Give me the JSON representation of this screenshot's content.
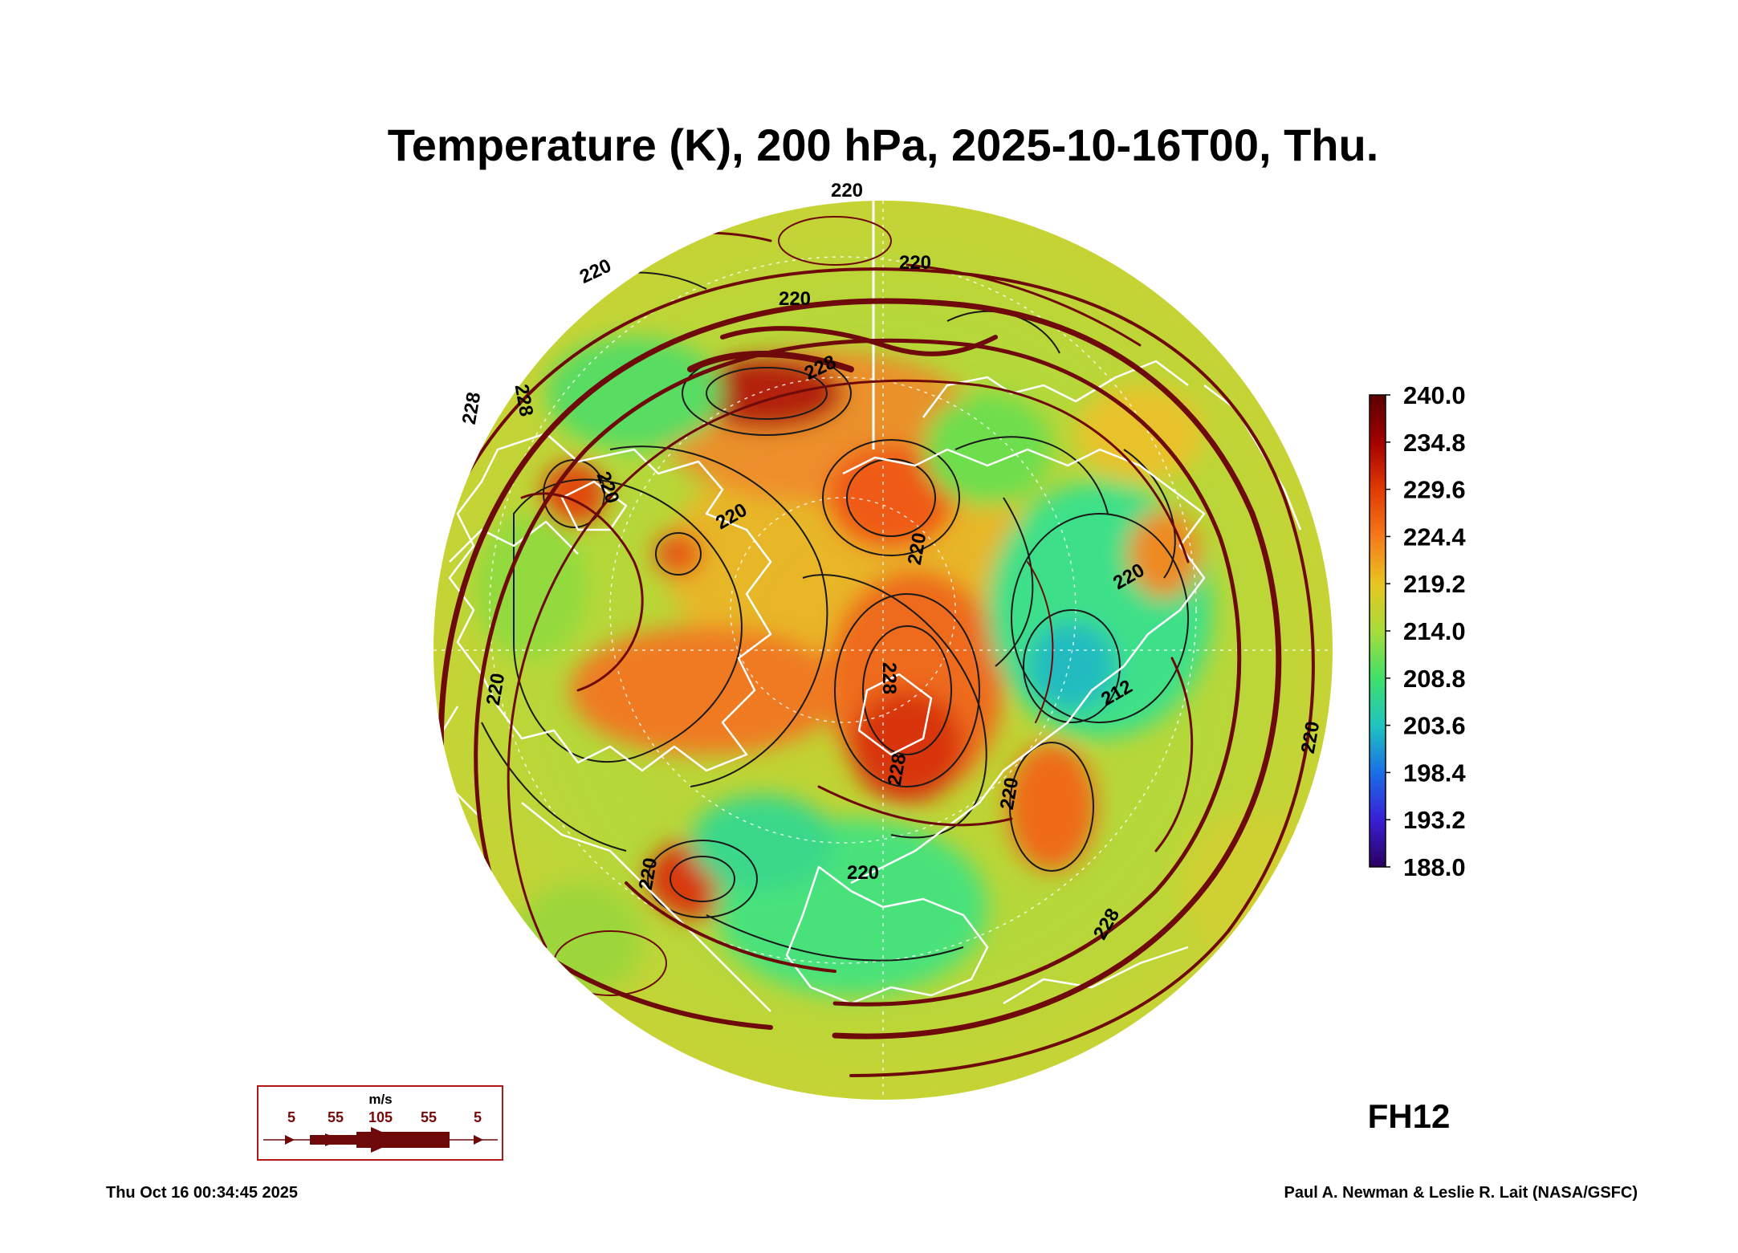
{
  "title": "Temperature (K), 200 hPa, 2025-10-16T00, Thu.",
  "colorbar": {
    "labels": [
      "240.0",
      "234.8",
      "229.6",
      "224.4",
      "219.2",
      "214.0",
      "208.8",
      "203.6",
      "198.4",
      "193.2",
      "188.0"
    ],
    "colors": [
      "#5a0000",
      "#a30000",
      "#e03a00",
      "#f57a1a",
      "#e8c520",
      "#a8dc3a",
      "#3fe06a",
      "#1fc4c0",
      "#1a6fe6",
      "#3a1fd6",
      "#2a0060"
    ]
  },
  "contour_labels": [
    "220",
    "220",
    "220",
    "220",
    "220",
    "220",
    "228",
    "228",
    "228",
    "228",
    "220",
    "212",
    "220",
    "220",
    "220",
    "220",
    "228",
    "220",
    "220",
    "228"
  ],
  "wind_key": {
    "unit": "m/s",
    "values": [
      "5",
      "55",
      "105",
      "55",
      "5"
    ]
  },
  "forecast_hour": "FH12",
  "timestamp": "Thu Oct 16 00:34:45 2025",
  "credit": "Paul A. Newman & Leslie R. Lait (NASA/GSFC)",
  "colors": {
    "streamline": "#6e0a0a",
    "coast": "#ffffff",
    "base_field": "#b9d83a"
  }
}
